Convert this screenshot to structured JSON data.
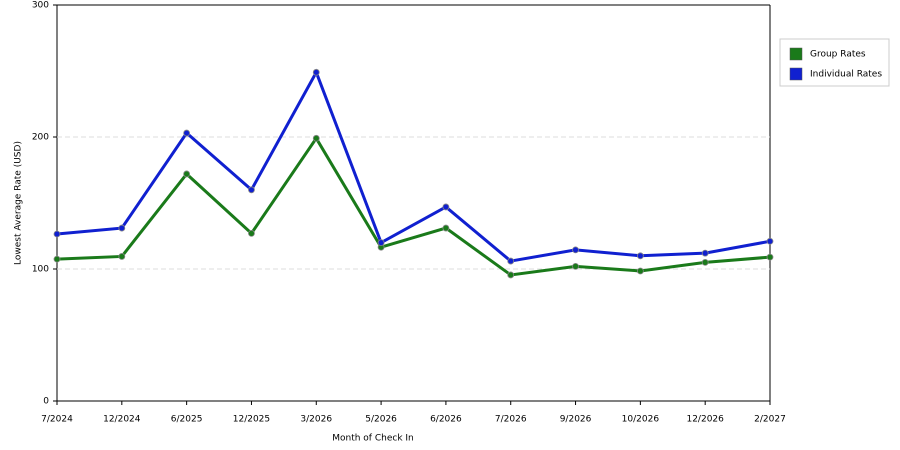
{
  "chart_data": {
    "type": "line",
    "x_label": "Month of Check In",
    "y_label": "Lowest Average Rate (USD)",
    "categories": [
      "7/2024",
      "12/2024",
      "6/2025",
      "12/2025",
      "3/2026",
      "5/2026",
      "6/2026",
      "7/2026",
      "9/2026",
      "10/2026",
      "12/2026",
      "2/2027"
    ],
    "series": [
      {
        "name": "Group Rates",
        "color": "#1a7a1a",
        "values": [
          107.5,
          109.5,
          172,
          127,
          199,
          116.5,
          131,
          95.5,
          102,
          98.5,
          105,
          109
        ]
      },
      {
        "name": "Individual Rates",
        "color": "#1020d0",
        "values": [
          126.5,
          131,
          203,
          160,
          249,
          120,
          147,
          106,
          114.5,
          110,
          112,
          121
        ]
      }
    ],
    "ylim": [
      0,
      300
    ],
    "yticks": [
      0,
      100,
      200,
      300
    ],
    "grid": true,
    "legend": "upper right"
  }
}
